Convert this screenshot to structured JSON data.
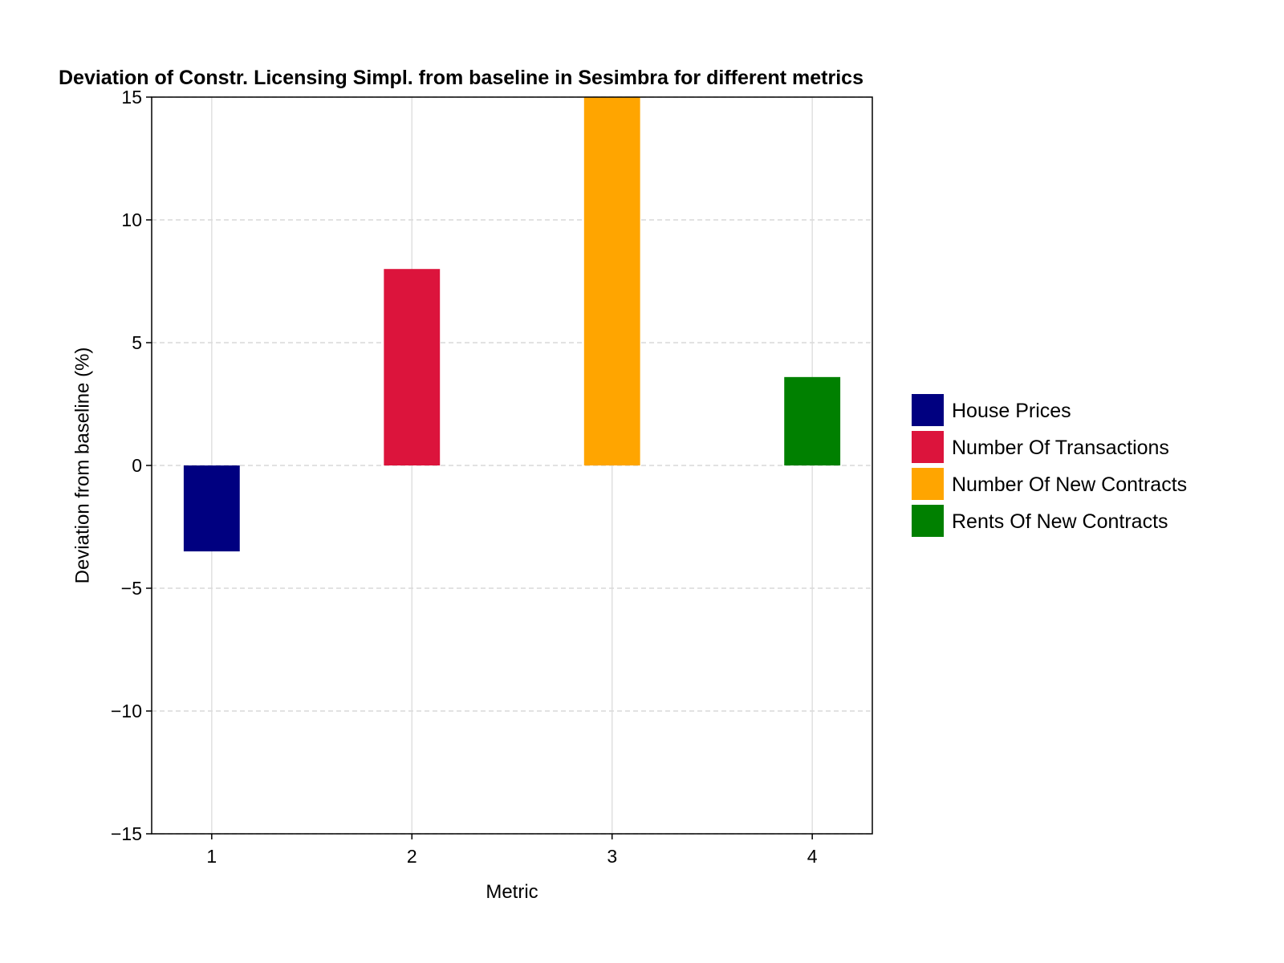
{
  "chart_data": {
    "type": "bar",
    "title": "Deviation of Constr. Licensing Simpl. from baseline in Sesimbra for different metrics",
    "xlabel": "Metric",
    "ylabel": "Deviation from baseline (%)",
    "categories": [
      "1",
      "2",
      "3",
      "4"
    ],
    "x": [
      1,
      2,
      3,
      4
    ],
    "values": [
      -3.5,
      8.0,
      15.0,
      3.6
    ],
    "colors": [
      "#000080",
      "#DC143C",
      "#FFA500",
      "#008000"
    ],
    "xlim": [
      0.7,
      4.3
    ],
    "ylim": [
      -15,
      15
    ],
    "yticks": [
      -15,
      -10,
      -5,
      0,
      5,
      10,
      15
    ],
    "ytick_labels": [
      "−15",
      "−10",
      "−5",
      "0",
      "5",
      "10",
      "15"
    ],
    "grid": true,
    "legend_position": "right",
    "legend": [
      {
        "label": "House Prices",
        "color": "#000080"
      },
      {
        "label": "Number Of Transactions",
        "color": "#DC143C"
      },
      {
        "label": "Number Of New Contracts",
        "color": "#FFA500"
      },
      {
        "label": "Rents Of New Contracts",
        "color": "#008000"
      }
    ]
  }
}
